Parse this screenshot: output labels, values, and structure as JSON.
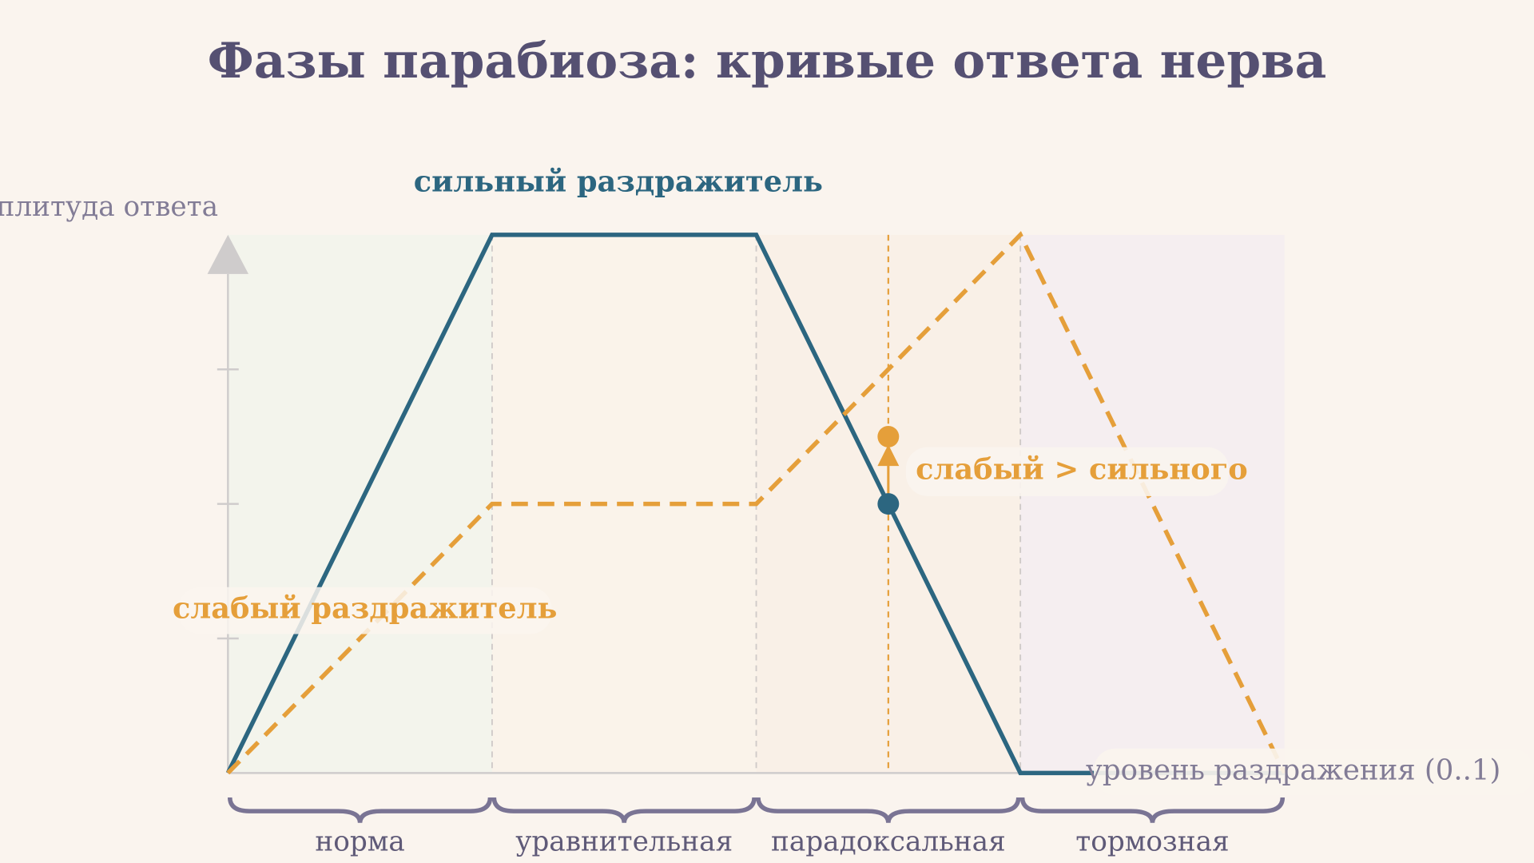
{
  "chart_data": {
    "type": "line",
    "title": "Фазы парабиоза: кривые ответа нерва",
    "x_label": "уровень раздражения (0..1)",
    "y_label": "амплитуда ответа",
    "xlim": [
      0,
      1
    ],
    "ylim": [
      0,
      1
    ],
    "xticks": [
      0,
      0.25,
      0.5,
      0.75,
      1
    ],
    "yticks": [
      0.25,
      0.5,
      0.75
    ],
    "phases": [
      "норма",
      "уравнительная",
      "парадоксальная",
      "тормозная"
    ],
    "phase_colors": [
      "#f3f4ec",
      "#faf3ea",
      "#f9f0e7",
      "#f5eef0"
    ],
    "series": [
      {
        "name": "сильный раздражитель",
        "color": "#2c6680",
        "dashed": false,
        "x": [
          0,
          0.25,
          0.5,
          0.75,
          1
        ],
        "values": [
          0,
          1,
          1,
          0,
          0
        ]
      },
      {
        "name": "слабый раздражитель",
        "color": "#e59f3a",
        "dashed": true,
        "x": [
          0,
          0.25,
          0.5,
          0.75,
          1
        ],
        "values": [
          0,
          0.5,
          0.5,
          1,
          0
        ]
      }
    ],
    "annotation": {
      "text": "слабый > сильного",
      "x": 0.625,
      "y_from": 0.5,
      "y_to": 0.625
    }
  }
}
